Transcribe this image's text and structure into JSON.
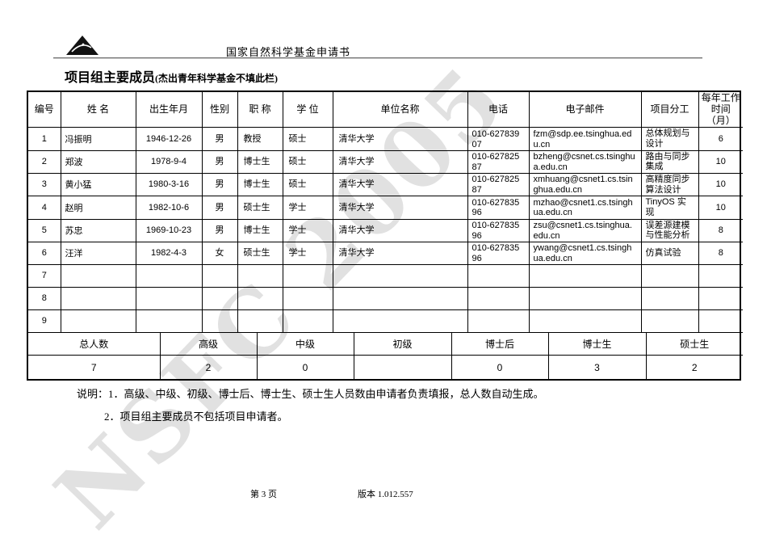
{
  "page_header": {
    "title": "国家自然科学基金申请书"
  },
  "watermark": "NSFC 2005",
  "section_title": {
    "main": "项目组主要成员",
    "paren": "(杰出青年科学基金不填此栏)"
  },
  "table": {
    "columns": [
      "编号",
      "姓  名",
      "出生年月",
      "性别",
      "职 称",
      "学 位",
      "单位名称",
      "电话",
      "电子邮件",
      "项目分工",
      "每年工作时间（月）"
    ],
    "column_keys": [
      "num",
      "name",
      "dob",
      "gender",
      "title",
      "degree",
      "org",
      "phone",
      "email",
      "role",
      "months"
    ],
    "total_rows": 9,
    "rows": [
      {
        "num": "1",
        "name": "冯振明",
        "dob": "1946-12-26",
        "gender": "男",
        "title": "教授",
        "degree": "硕士",
        "org": "清华大学",
        "phone": "010-62783907",
        "email": "fzm@sdp.ee.tsinghua.edu.cn",
        "role": "总体规划与设计",
        "months": "6"
      },
      {
        "num": "2",
        "name": "郑波",
        "dob": "1978-9-4",
        "gender": "男",
        "title": "博士生",
        "degree": "硕士",
        "org": "清华大学",
        "phone": "010-62782587",
        "email": "bzheng@csnet.cs.tsinghua.edu.cn",
        "role": "路由与同步集成",
        "months": "10"
      },
      {
        "num": "3",
        "name": "黄小猛",
        "dob": "1980-3-16",
        "gender": "男",
        "title": "博士生",
        "degree": "硕士",
        "org": "清华大学",
        "phone": "010-62782587",
        "email": "xmhuang@csnet1.cs.tsinghua.edu.cn",
        "role": "高精度同步算法设计",
        "months": "10"
      },
      {
        "num": "4",
        "name": "赵明",
        "dob": "1982-10-6",
        "gender": "男",
        "title": "硕士生",
        "degree": "学士",
        "org": "清华大学",
        "phone": "010-62783596",
        "email": "mzhao@csnet1.cs.tsinghua.edu.cn",
        "role": "TinyOS 实现",
        "months": "10"
      },
      {
        "num": "5",
        "name": "苏忠",
        "dob": "1969-10-23",
        "gender": "男",
        "title": "博士生",
        "degree": "学士",
        "org": "清华大学",
        "phone": "010-62783596",
        "email": "zsu@csnet1.cs.tsinghua.edu.cn",
        "role": "误差源建模与性能分析",
        "months": "8"
      },
      {
        "num": "6",
        "name": "汪洋",
        "dob": "1982-4-3",
        "gender": "女",
        "title": "硕士生",
        "degree": "学士",
        "org": "清华大学",
        "phone": "010-62783596",
        "email": "ywang@csnet1.cs.tsinghua.edu.cn",
        "role": "仿真试验",
        "months": "8"
      }
    ]
  },
  "summary": {
    "headers": [
      "总人数",
      "高级",
      "中级",
      "初级",
      "博士后",
      "博士生",
      "硕士生"
    ],
    "values": [
      "7",
      "2",
      "0",
      "",
      "0",
      "3",
      "2"
    ]
  },
  "notes": {
    "line1": "说明：1．高级、中级、初级、博士后、博士生、硕士生人员数由申请者负责填报，总人数自动生成。",
    "line2": "2．项目组主要成员不包括项目申请者。"
  },
  "footer": {
    "page": "第 3 页",
    "version": "版本 1.012.557"
  },
  "colors": {
    "border": "#000000",
    "rule": "#6f6f6f",
    "watermark": "#c9c9c9",
    "background": "#ffffff"
  }
}
